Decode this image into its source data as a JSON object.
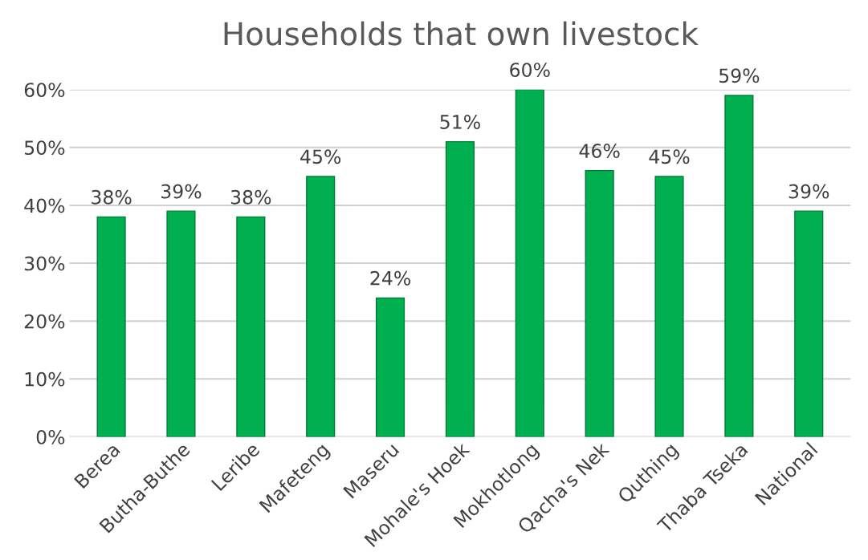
{
  "chart_data": {
    "type": "bar",
    "title": "Households that own livestock",
    "categories": [
      "Berea",
      "Butha-Buthe",
      "Leribe",
      "Mafeteng",
      "Maseru",
      "Mohale's Hoek",
      "Mokhotlong",
      "Qacha's Nek",
      "Quthing",
      "Thaba Tseka",
      "National"
    ],
    "values": [
      38,
      39,
      38,
      45,
      24,
      51,
      60,
      46,
      45,
      59,
      39
    ],
    "value_labels": [
      "38%",
      "39%",
      "38%",
      "45%",
      "24%",
      "51%",
      "60%",
      "46%",
      "45%",
      "59%",
      "39%"
    ],
    "color": "#00b050",
    "ylim": [
      0,
      60
    ],
    "yticks": [
      {
        "value": 0,
        "label": "0%"
      },
      {
        "value": 10,
        "label": "10%"
      },
      {
        "value": 20,
        "label": "20%"
      },
      {
        "value": 30,
        "label": "30%"
      },
      {
        "value": 40,
        "label": "40%"
      },
      {
        "value": 50,
        "label": "50%"
      },
      {
        "value": 60,
        "label": "60%"
      }
    ],
    "grid": "y",
    "legend": false
  }
}
